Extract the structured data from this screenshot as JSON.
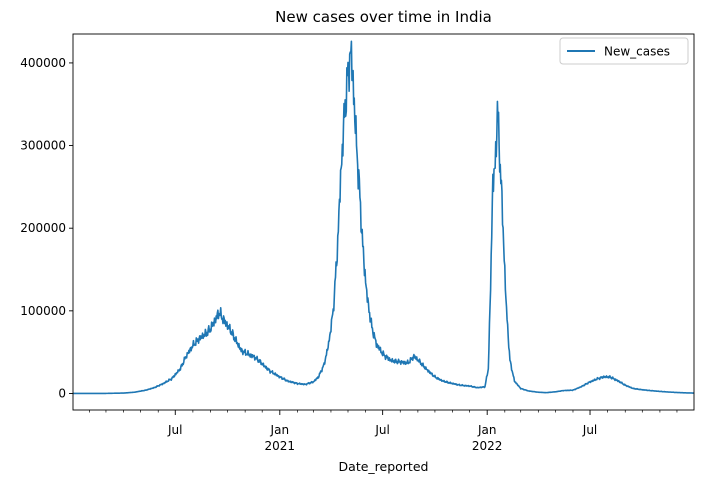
{
  "chart_data": {
    "type": "line",
    "title": "New cases over time in India",
    "xlabel": "Date_reported",
    "ylabel": "",
    "xlim": [
      "2020-01-03",
      "2022-12-31"
    ],
    "ylim": [
      -20000,
      435000
    ],
    "grid": false,
    "legend_position": "top-right",
    "colors": {
      "line": "#1f77b4"
    },
    "y_ticks": [
      {
        "value": 0,
        "label": "0"
      },
      {
        "value": 100000,
        "label": "100000"
      },
      {
        "value": 200000,
        "label": "200000"
      },
      {
        "value": 300000,
        "label": "300000"
      },
      {
        "value": 400000,
        "label": "400000"
      }
    ],
    "x_major_ticks": [
      {
        "date": "2020-07-01",
        "label": "Jul",
        "sublabel": ""
      },
      {
        "date": "2021-01-01",
        "label": "Jan",
        "sublabel": "2021"
      },
      {
        "date": "2021-07-01",
        "label": "Jul",
        "sublabel": ""
      },
      {
        "date": "2022-01-01",
        "label": "Jan",
        "sublabel": "2022"
      },
      {
        "date": "2022-07-01",
        "label": "Jul",
        "sublabel": ""
      }
    ],
    "series": [
      {
        "name": "New_cases",
        "x": [
          "2020-01-03",
          "2020-03-01",
          "2020-04-01",
          "2020-04-20",
          "2020-05-10",
          "2020-05-25",
          "2020-06-10",
          "2020-06-25",
          "2020-07-10",
          "2020-07-20",
          "2020-08-01",
          "2020-08-10",
          "2020-08-20",
          "2020-09-01",
          "2020-09-10",
          "2020-09-16",
          "2020-09-25",
          "2020-10-05",
          "2020-10-15",
          "2020-10-25",
          "2020-11-05",
          "2020-11-15",
          "2020-11-25",
          "2020-12-05",
          "2020-12-15",
          "2021-01-01",
          "2021-01-15",
          "2021-02-01",
          "2021-02-15",
          "2021-03-01",
          "2021-03-10",
          "2021-03-20",
          "2021-03-28",
          "2021-04-05",
          "2021-04-12",
          "2021-04-18",
          "2021-04-24",
          "2021-04-30",
          "2021-05-03",
          "2021-05-06",
          "2021-05-09",
          "2021-05-12",
          "2021-05-16",
          "2021-05-20",
          "2021-05-25",
          "2021-05-30",
          "2021-06-05",
          "2021-06-12",
          "2021-06-20",
          "2021-07-01",
          "2021-07-15",
          "2021-08-01",
          "2021-08-15",
          "2021-08-25",
          "2021-09-05",
          "2021-09-15",
          "2021-10-01",
          "2021-10-15",
          "2021-11-01",
          "2021-11-15",
          "2021-12-01",
          "2021-12-15",
          "2021-12-28",
          "2022-01-03",
          "2022-01-07",
          "2022-01-11",
          "2022-01-15",
          "2022-01-19",
          "2022-01-22",
          "2022-01-26",
          "2022-01-30",
          "2022-02-04",
          "2022-02-10",
          "2022-02-18",
          "2022-03-01",
          "2022-03-15",
          "2022-04-01",
          "2022-04-15",
          "2022-05-01",
          "2022-05-15",
          "2022-06-01",
          "2022-06-15",
          "2022-07-01",
          "2022-07-15",
          "2022-07-25",
          "2022-08-05",
          "2022-08-20",
          "2022-09-01",
          "2022-09-15",
          "2022-10-01",
          "2022-10-15",
          "2022-11-01",
          "2022-11-15",
          "2022-12-01",
          "2022-12-15",
          "2022-12-31"
        ],
        "values": [
          0,
          100,
          500,
          1500,
          4000,
          7000,
          12000,
          18000,
          30000,
          45000,
          58000,
          65000,
          70000,
          78000,
          90000,
          98000,
          88000,
          78000,
          65000,
          52000,
          48000,
          45000,
          40000,
          33000,
          27000,
          20000,
          15000,
          12000,
          11000,
          14000,
          20000,
          35000,
          60000,
          100000,
          170000,
          260000,
          330000,
          380000,
          400000,
          413000,
          390000,
          350000,
          300000,
          260000,
          200000,
          150000,
          110000,
          80000,
          60000,
          48000,
          40000,
          38000,
          37000,
          45000,
          38000,
          30000,
          20000,
          15000,
          12000,
          10000,
          9000,
          7000,
          8000,
          30000,
          130000,
          260000,
          270000,
          346000,
          300000,
          250000,
          180000,
          100000,
          40000,
          15000,
          6000,
          3000,
          1500,
          1000,
          2000,
          3500,
          4000,
          8000,
          14000,
          18000,
          20000,
          20000,
          15000,
          10000,
          6000,
          4500,
          3500,
          2500,
          1800,
          1200,
          800,
          500
        ]
      }
    ]
  }
}
